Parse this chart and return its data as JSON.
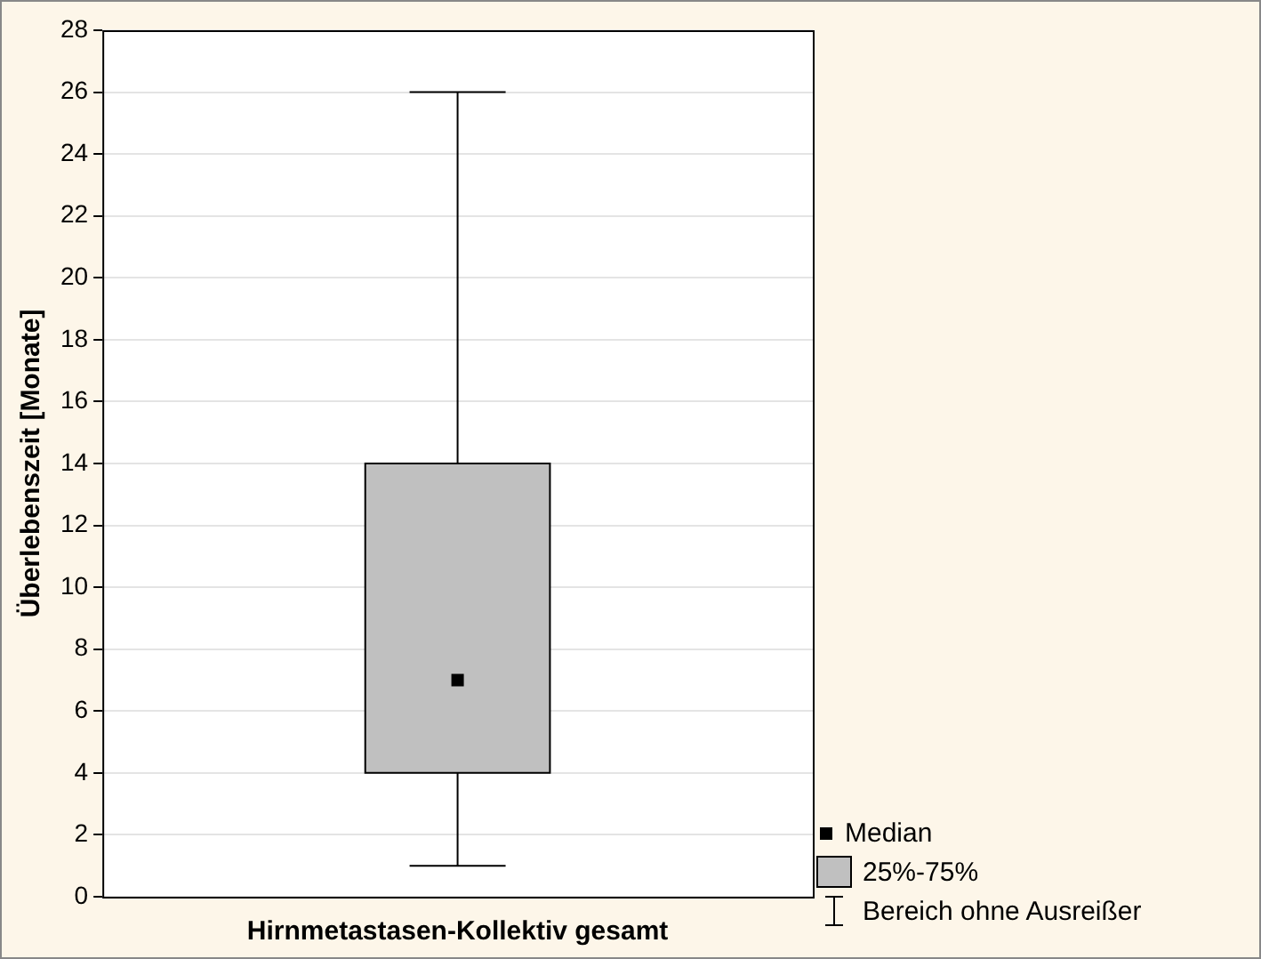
{
  "chart_data": {
    "type": "box",
    "ylabel": "Überlebenszeit [Monate]",
    "categories": [
      "Hirnmetastasen-Kollektiv gesamt"
    ],
    "boxes": [
      {
        "low": 1,
        "q1": 4,
        "median": 7,
        "q3": 14,
        "high": 26
      }
    ],
    "color": "#c0c0c0",
    "ylim": [
      0,
      28
    ],
    "yticks": [
      0,
      2,
      4,
      6,
      8,
      10,
      12,
      14,
      16,
      18,
      20,
      22,
      24,
      26,
      28
    ],
    "grid": "y",
    "annotations": [
      "Median",
      "25%-75%",
      "Bereich ohne Ausreißer"
    ]
  }
}
